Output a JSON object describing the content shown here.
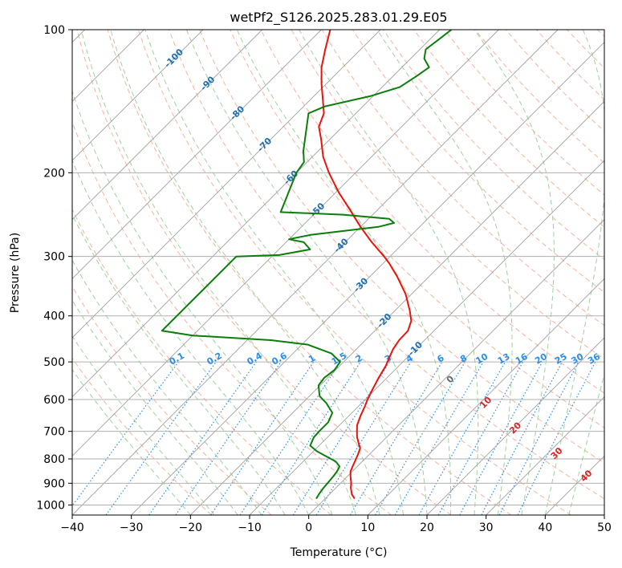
{
  "chart_data": {
    "type": "line",
    "title": "wetPf2_S126.2025.283.01.29.E05",
    "xlabel": "Temperature (°C)",
    "ylabel": "Pressure (hPa)",
    "xlim": [
      -40,
      50
    ],
    "ylim": [
      1050,
      100
    ],
    "y_scale": "log",
    "x_ticks": [
      "−40",
      "−30",
      "−20",
      "−10",
      "0",
      "10",
      "20",
      "30",
      "40",
      "50"
    ],
    "x_tick_values": [
      -40,
      -30,
      -20,
      -10,
      0,
      10,
      20,
      30,
      40,
      50
    ],
    "y_ticks": [
      "100",
      "200",
      "300",
      "400",
      "500",
      "600",
      "700",
      "800",
      "900",
      "1000"
    ],
    "y_tick_values": [
      100,
      200,
      300,
      400,
      500,
      600,
      700,
      800,
      900,
      1000
    ],
    "grid": true,
    "skew": 45,
    "colors": {
      "temperature": "#e8140c",
      "dewpoint": "#0b7d0b",
      "isotherm": "#a0a0a0",
      "dry_adiabat": "#f6b29c",
      "moist_adiabat": "#9fd09f",
      "mixing_ratio": "#2a8ee6",
      "isotherm_label": "#1f6fae",
      "moist_label": "#d62728"
    },
    "series": [
      {
        "temp_points": [
          [
            970,
            5.0
          ],
          [
            950,
            3.8
          ],
          [
            920,
            2.5
          ],
          [
            900,
            1.8
          ],
          [
            870,
            0.5
          ],
          [
            850,
            -0.3
          ],
          [
            830,
            -0.8
          ],
          [
            800,
            -1.5
          ],
          [
            780,
            -2.0
          ],
          [
            760,
            -2.6
          ],
          [
            740,
            -3.8
          ],
          [
            720,
            -5.0
          ],
          [
            700,
            -6.0
          ],
          [
            680,
            -7.0
          ],
          [
            650,
            -8.0
          ],
          [
            620,
            -8.9
          ],
          [
            600,
            -9.6
          ],
          [
            570,
            -10.5
          ],
          [
            540,
            -11.4
          ],
          [
            510,
            -12.2
          ],
          [
            490,
            -13.0
          ],
          [
            470,
            -13.8
          ],
          [
            450,
            -14.3
          ],
          [
            430,
            -14.4
          ],
          [
            410,
            -15.5
          ],
          [
            390,
            -17.5
          ],
          [
            360,
            -21.0
          ],
          [
            330,
            -25.5
          ],
          [
            310,
            -29.0
          ],
          [
            300,
            -31.0
          ],
          [
            280,
            -35.5
          ],
          [
            260,
            -40.0
          ],
          [
            240,
            -44.5
          ],
          [
            220,
            -49.5
          ],
          [
            200,
            -54.5
          ],
          [
            185,
            -58.2
          ],
          [
            170,
            -61.5
          ],
          [
            160,
            -64.0
          ],
          [
            150,
            -65.4
          ],
          [
            140,
            -68.0
          ],
          [
            130,
            -70.8
          ],
          [
            120,
            -73.6
          ],
          [
            110,
            -76.0
          ],
          [
            100,
            -78.5
          ]
        ],
        "dew_points": [
          [
            970,
            -1.5
          ],
          [
            950,
            -1.8
          ],
          [
            920,
            -2.1
          ],
          [
            900,
            -2.2
          ],
          [
            870,
            -2.4
          ],
          [
            850,
            -2.6
          ],
          [
            830,
            -3.0
          ],
          [
            810,
            -4.5
          ],
          [
            790,
            -7.0
          ],
          [
            770,
            -9.5
          ],
          [
            750,
            -11.5
          ],
          [
            720,
            -12.3
          ],
          [
            700,
            -12.4
          ],
          [
            670,
            -12.4
          ],
          [
            640,
            -13.3
          ],
          [
            610,
            -16.0
          ],
          [
            590,
            -18.3
          ],
          [
            560,
            -20.3
          ],
          [
            540,
            -20.6
          ],
          [
            520,
            -20.2
          ],
          [
            500,
            -20.6
          ],
          [
            480,
            -23.5
          ],
          [
            460,
            -29.0
          ],
          [
            450,
            -36.0
          ],
          [
            440,
            -50.0
          ],
          [
            430,
            -56.0
          ],
          [
            300,
            -56.0
          ],
          [
            298,
            -49.0
          ],
          [
            290,
            -44.7
          ],
          [
            280,
            -47.0
          ],
          [
            276,
            -50.0
          ],
          [
            270,
            -47.0
          ],
          [
            260,
            -37.0
          ],
          [
            255,
            -35.0
          ],
          [
            250,
            -36.5
          ],
          [
            245,
            -45.0
          ],
          [
            242,
            -56.0
          ],
          [
            200,
            -60.0
          ],
          [
            190,
            -60.5
          ],
          [
            180,
            -62.5
          ],
          [
            150,
            -68.0
          ],
          [
            145,
            -66.4
          ],
          [
            138,
            -60.5
          ],
          [
            132,
            -57.0
          ],
          [
            125,
            -56.0
          ],
          [
            120,
            -55.4
          ],
          [
            115,
            -57.7
          ],
          [
            110,
            -59.0
          ],
          [
            105,
            -58.5
          ],
          [
            100,
            -58.0
          ]
        ]
      }
    ],
    "isotherm_label_values": [
      "-100",
      "-90",
      "-80",
      "-70",
      "-60",
      "-50",
      "-40",
      "-30",
      "-20",
      "-10"
    ],
    "mixing_ratio_labels": [
      "0.1",
      "0.2",
      "0.4",
      "0.6",
      "1",
      "1.5",
      "2",
      "3",
      "4",
      "6",
      "8",
      "10",
      "13",
      "16",
      "20",
      "25",
      "30",
      "36"
    ],
    "moist_adiabat_labels": [
      "0",
      "10",
      "20",
      "30",
      "40"
    ]
  }
}
